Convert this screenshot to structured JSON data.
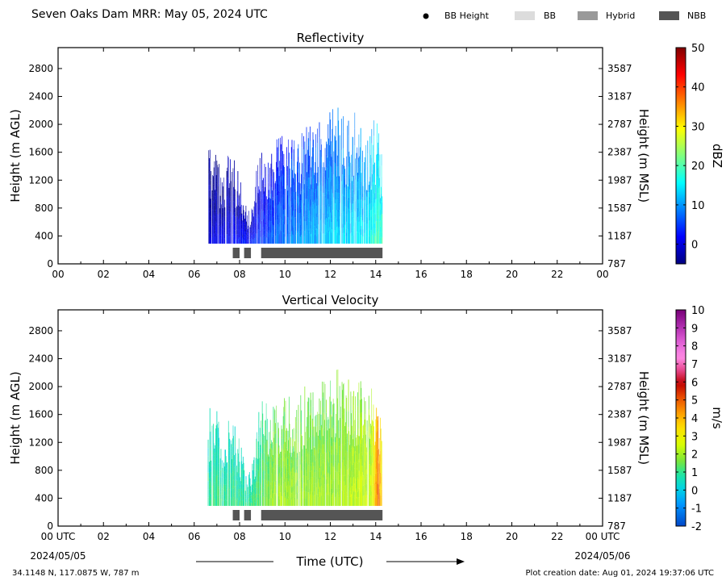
{
  "header": {
    "title": "Seven Oaks Dam MRR:  May 05, 2024 UTC",
    "legend": [
      {
        "label": "BB Height",
        "symbol": "dot",
        "color": "#000000"
      },
      {
        "label": "BB",
        "symbol": "box",
        "color": "#dcdcdc"
      },
      {
        "label": "Hybrid",
        "symbol": "box",
        "color": "#999999"
      },
      {
        "label": "NBB",
        "symbol": "box",
        "color": "#555555"
      }
    ]
  },
  "footer": {
    "location": "34.1148 N, 117.0875 W, 787 m",
    "created": "Plot creation date: Aug 01, 2024 19:37:06 UTC",
    "xlabel": "Time (UTC)",
    "start_date": "2024/05/05",
    "end_date": "2024/05/06"
  },
  "chart_data": [
    {
      "type": "heatmap",
      "title": "Reflectivity",
      "xlabel": "Time (UTC)",
      "ylabel": "Height (m AGL)",
      "y2label": "Height (m MSL)",
      "xlim": [
        0,
        24
      ],
      "ylim": [
        0,
        3100
      ],
      "x_ticks": [
        "00",
        "02",
        "04",
        "06",
        "08",
        "10",
        "12",
        "14",
        "16",
        "18",
        "20",
        "22",
        "00"
      ],
      "y_ticks": [
        0,
        400,
        800,
        1200,
        1600,
        2000,
        2400,
        2800
      ],
      "y2_ticks": [
        787,
        1187,
        1587,
        1987,
        2387,
        2787,
        3187,
        3587
      ],
      "colorbar": {
        "label": "dBZ",
        "min": -5,
        "max": 50,
        "ticks": [
          0,
          10,
          20,
          30,
          40,
          50
        ],
        "cmap": "jet"
      },
      "echo_base_m": 290,
      "echo_top_profile": [
        {
          "t": 6.6,
          "top": 1580
        },
        {
          "t": 6.9,
          "top": 1700
        },
        {
          "t": 7.2,
          "top": 1300
        },
        {
          "t": 7.5,
          "top": 1550
        },
        {
          "t": 7.9,
          "top": 1380
        },
        {
          "t": 8.2,
          "top": 900
        },
        {
          "t": 8.5,
          "top": 800
        },
        {
          "t": 8.9,
          "top": 1720
        },
        {
          "t": 9.5,
          "top": 1650
        },
        {
          "t": 10.0,
          "top": 1850
        },
        {
          "t": 10.5,
          "top": 1700
        },
        {
          "t": 11.0,
          "top": 2000
        },
        {
          "t": 11.5,
          "top": 1950
        },
        {
          "t": 12.0,
          "top": 2150
        },
        {
          "t": 12.3,
          "top": 2200
        },
        {
          "t": 12.7,
          "top": 2000
        },
        {
          "t": 13.2,
          "top": 2100
        },
        {
          "t": 13.6,
          "top": 1800
        },
        {
          "t": 14.0,
          "top": 2050
        },
        {
          "t": 14.3,
          "top": 1500
        }
      ],
      "value_trend": [
        {
          "t": 6.6,
          "value": 0
        },
        {
          "t": 8.5,
          "value": 3
        },
        {
          "t": 10.0,
          "value": 9
        },
        {
          "t": 12.0,
          "value": 13
        },
        {
          "t": 13.5,
          "value": 15
        },
        {
          "t": 14.3,
          "value": 20
        }
      ],
      "bright_band": [
        {
          "class": "NBB",
          "start": 7.7,
          "end": 8.0
        },
        {
          "class": "NBB",
          "start": 8.2,
          "end": 8.5
        },
        {
          "class": "NBB",
          "start": 8.95,
          "end": 14.3
        }
      ]
    },
    {
      "type": "heatmap",
      "title": "Vertical Velocity",
      "xlabel": "Time (UTC)",
      "ylabel": "Height (m AGL)",
      "y2label": "Height (m MSL)",
      "xlim": [
        0,
        24
      ],
      "ylim": [
        0,
        3100
      ],
      "x_ticks": [
        "00 UTC",
        "02",
        "04",
        "06",
        "08",
        "10",
        "12",
        "14",
        "16",
        "18",
        "20",
        "22",
        "00 UTC"
      ],
      "y_ticks": [
        0,
        400,
        800,
        1200,
        1600,
        2000,
        2400,
        2800
      ],
      "y2_ticks": [
        787,
        1187,
        1587,
        1987,
        2387,
        2787,
        3187,
        3587
      ],
      "colorbar": {
        "label": "m/s",
        "min": -2,
        "max": 10,
        "ticks": [
          -2,
          -1,
          0,
          1,
          2,
          3,
          4,
          5,
          6,
          7,
          8,
          9,
          10
        ],
        "cmap": "velocity"
      },
      "echo_base_m": 290,
      "echo_top_profile": [
        {
          "t": 6.6,
          "top": 1580
        },
        {
          "t": 6.9,
          "top": 1700
        },
        {
          "t": 7.2,
          "top": 1300
        },
        {
          "t": 7.5,
          "top": 1550
        },
        {
          "t": 7.9,
          "top": 1380
        },
        {
          "t": 8.2,
          "top": 900
        },
        {
          "t": 8.5,
          "top": 800
        },
        {
          "t": 8.9,
          "top": 1720
        },
        {
          "t": 9.5,
          "top": 1650
        },
        {
          "t": 10.0,
          "top": 1850
        },
        {
          "t": 10.5,
          "top": 1700
        },
        {
          "t": 11.0,
          "top": 2000
        },
        {
          "t": 11.5,
          "top": 1950
        },
        {
          "t": 12.0,
          "top": 2150
        },
        {
          "t": 12.3,
          "top": 2200
        },
        {
          "t": 12.7,
          "top": 2000
        },
        {
          "t": 13.2,
          "top": 2100
        },
        {
          "t": 13.6,
          "top": 1800
        },
        {
          "t": 14.0,
          "top": 2050
        },
        {
          "t": 14.3,
          "top": 1500
        }
      ],
      "value_trend": [
        {
          "t": 6.6,
          "value": 1
        },
        {
          "t": 8.5,
          "value": 1
        },
        {
          "t": 9.5,
          "value": 2
        },
        {
          "t": 12.0,
          "value": 2
        },
        {
          "t": 13.8,
          "value": 2.5
        },
        {
          "t": 14.1,
          "value": 5
        },
        {
          "t": 14.3,
          "value": 3
        }
      ],
      "bright_band": [
        {
          "class": "NBB",
          "start": 7.7,
          "end": 8.0
        },
        {
          "class": "NBB",
          "start": 8.2,
          "end": 8.5
        },
        {
          "class": "NBB",
          "start": 8.95,
          "end": 14.3
        }
      ]
    }
  ]
}
